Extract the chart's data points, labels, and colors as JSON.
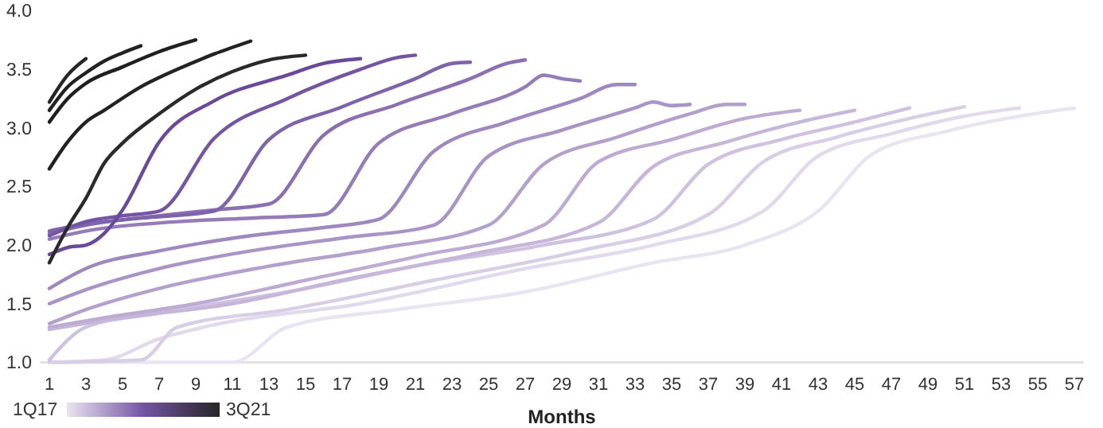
{
  "chart_data": {
    "type": "line",
    "xlabel": "Months",
    "annotations": [
      "1Q17",
      "3Q21"
    ],
    "xlim": [
      0.5,
      57.5
    ],
    "xticks": [
      1,
      3,
      5,
      7,
      9,
      11,
      13,
      15,
      17,
      19,
      21,
      23,
      25,
      27,
      29,
      31,
      33,
      35,
      37,
      39,
      41,
      43,
      45,
      47,
      49,
      51,
      53,
      55,
      57
    ],
    "ylim": [
      1,
      4
    ],
    "yticks": [
      {
        "value": 1,
        "label": "1.0"
      },
      {
        "value": 1.5,
        "label": "1.5"
      },
      {
        "value": 2,
        "label": "2.0"
      },
      {
        "value": 2.5,
        "label": "2.5"
      },
      {
        "value": 3,
        "label": "3.0"
      },
      {
        "value": 3.5,
        "label": "3.5"
      },
      {
        "value": 4,
        "label": "4.0"
      }
    ],
    "grid": false,
    "marker": "none",
    "line_style": "solid",
    "series": [
      {
        "color": "#e9e4f1",
        "x": [
          1,
          11,
          14,
          20,
          27,
          34,
          39,
          43,
          46,
          50,
          54,
          57
        ],
        "values": [
          1.0,
          1.0,
          1.3,
          1.45,
          1.6,
          1.85,
          2.0,
          2.29,
          2.78,
          2.97,
          3.1,
          3.17
        ]
      },
      {
        "color": "#e1d9ec",
        "x": [
          1,
          4,
          7,
          10,
          18,
          27,
          34,
          40,
          43,
          47,
          51,
          54
        ],
        "values": [
          1.0,
          1.02,
          1.2,
          1.32,
          1.5,
          1.8,
          2.0,
          2.29,
          2.76,
          2.95,
          3.1,
          3.17
        ]
      },
      {
        "color": "#d8cee6",
        "x": [
          1,
          6,
          8,
          14,
          22,
          30,
          37,
          40,
          44,
          48,
          51
        ],
        "values": [
          1.0,
          1.02,
          1.3,
          1.45,
          1.7,
          1.95,
          2.26,
          2.71,
          2.92,
          3.08,
          3.18
        ]
      },
      {
        "color": "#cfc2e0",
        "x": [
          1,
          3,
          7,
          14,
          22,
          28,
          34,
          37,
          41,
          45,
          48
        ],
        "values": [
          1.02,
          1.3,
          1.42,
          1.6,
          1.85,
          2.0,
          2.22,
          2.69,
          2.9,
          3.05,
          3.17
        ]
      },
      {
        "color": "#c6b7da",
        "x": [
          1,
          5,
          11,
          17,
          24,
          31,
          34,
          38,
          42,
          45
        ],
        "values": [
          1.28,
          1.38,
          1.5,
          1.7,
          1.92,
          2.19,
          2.67,
          2.88,
          3.05,
          3.15
        ]
      },
      {
        "color": "#bdabd4",
        "x": [
          1,
          4,
          9,
          15,
          21,
          28,
          31,
          35,
          39,
          42
        ],
        "values": [
          1.3,
          1.38,
          1.5,
          1.7,
          1.9,
          2.17,
          2.71,
          2.9,
          3.08,
          3.15
        ]
      },
      {
        "color": "#b3a0cd",
        "x": [
          1,
          3,
          7,
          13,
          19,
          25,
          28,
          32,
          36,
          38,
          39
        ],
        "values": [
          1.33,
          1.45,
          1.63,
          1.82,
          1.97,
          2.17,
          2.69,
          2.92,
          3.12,
          3.2,
          3.2
        ]
      },
      {
        "color": "#a994c7",
        "x": [
          1,
          3,
          7,
          12,
          17,
          22,
          25,
          29,
          33,
          34,
          35,
          36
        ],
        "values": [
          1.5,
          1.62,
          1.8,
          1.95,
          2.06,
          2.17,
          2.76,
          2.98,
          3.17,
          3.22,
          3.19,
          3.2
        ]
      },
      {
        "color": "#9f88c0",
        "x": [
          1,
          3,
          7,
          12,
          16,
          19,
          22,
          26,
          30,
          32,
          33
        ],
        "values": [
          1.63,
          1.8,
          1.95,
          2.08,
          2.15,
          2.22,
          2.8,
          3.05,
          3.25,
          3.37,
          3.37
        ]
      },
      {
        "color": "#957cb9",
        "x": [
          1,
          3,
          8,
          12,
          16,
          19,
          23,
          27,
          28,
          29,
          30
        ],
        "values": [
          2.05,
          2.12,
          2.2,
          2.23,
          2.26,
          2.87,
          3.12,
          3.35,
          3.45,
          3.42,
          3.4
        ]
      },
      {
        "color": "#8a6fb3",
        "x": [
          1,
          3,
          7,
          10,
          13,
          16,
          20,
          24,
          26,
          27
        ],
        "values": [
          2.1,
          2.17,
          2.25,
          2.3,
          2.35,
          2.94,
          3.2,
          3.42,
          3.55,
          3.58
        ]
      },
      {
        "color": "#7f62ac",
        "x": [
          1,
          3,
          6,
          10,
          13,
          17,
          21,
          23,
          24
        ],
        "values": [
          2.12,
          2.18,
          2.23,
          2.29,
          2.9,
          3.18,
          3.42,
          3.55,
          3.56
        ]
      },
      {
        "color": "#7454a5",
        "x": [
          1,
          3,
          5,
          7,
          10,
          14,
          18,
          20,
          21
        ],
        "values": [
          2.08,
          2.2,
          2.25,
          2.29,
          2.91,
          3.25,
          3.5,
          3.6,
          3.62
        ]
      },
      {
        "color": "#6a489c",
        "x": [
          1,
          2,
          3,
          4,
          5,
          7,
          10,
          14,
          16,
          18
        ],
        "values": [
          1.92,
          1.98,
          2.0,
          2.1,
          2.3,
          2.88,
          3.23,
          3.45,
          3.55,
          3.59
        ]
      },
      {
        "color": "#2a2a2a",
        "x": [
          1,
          2,
          3,
          4,
          5,
          7,
          9,
          11,
          13,
          15
        ],
        "values": [
          1.85,
          2.15,
          2.4,
          2.7,
          2.87,
          3.12,
          3.33,
          3.48,
          3.58,
          3.62
        ]
      },
      {
        "color": "#222222",
        "x": [
          1,
          2,
          3,
          4,
          6,
          8,
          10,
          12
        ],
        "values": [
          2.65,
          2.88,
          3.05,
          3.15,
          3.35,
          3.5,
          3.63,
          3.74
        ]
      },
      {
        "color": "#1f1f1f",
        "x": [
          1,
          2,
          3,
          5,
          7,
          9
        ],
        "values": [
          3.05,
          3.25,
          3.38,
          3.52,
          3.65,
          3.75
        ]
      },
      {
        "color": "#222222",
        "x": [
          1,
          2,
          3,
          4,
          5,
          6
        ],
        "values": [
          3.15,
          3.35,
          3.47,
          3.57,
          3.64,
          3.7
        ]
      },
      {
        "color": "#262626",
        "x": [
          1,
          2,
          3
        ],
        "values": [
          3.22,
          3.45,
          3.59
        ]
      }
    ]
  }
}
